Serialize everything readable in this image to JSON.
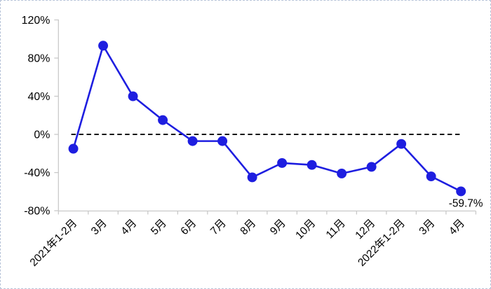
{
  "chart_data": {
    "type": "line",
    "title": "",
    "xlabel": "",
    "ylabel": "",
    "categories": [
      "2021年1-2月",
      "3月",
      "4月",
      "5月",
      "6月",
      "7月",
      "8月",
      "9月",
      "10月",
      "11月",
      "12月",
      "2022年1-2月",
      "3月",
      "4月"
    ],
    "values": [
      -15,
      93,
      40,
      15,
      -7,
      -7,
      -45,
      -30,
      -32,
      -41,
      -34,
      -10,
      -44,
      -59.7
    ],
    "unit": "%",
    "ylim": [
      -80,
      120
    ],
    "y_ticks": [
      "120%",
      "80%",
      "40%",
      "0%",
      "-40%",
      "-80%"
    ],
    "y_tick_values": [
      120,
      80,
      40,
      0,
      -40,
      -80
    ],
    "grid": false,
    "legend_position": "none",
    "zero_line": {
      "value": 0,
      "style": "dashed",
      "color": "#000000"
    },
    "annotation": {
      "text": "-59.7%",
      "index": 13
    },
    "colors": {
      "line": "#1e1ee0",
      "marker": "#1e1ee0",
      "axis": "#c9c9c9",
      "text": "#000000",
      "background": "#ffffff",
      "page_border": "#b6c3d8"
    }
  }
}
